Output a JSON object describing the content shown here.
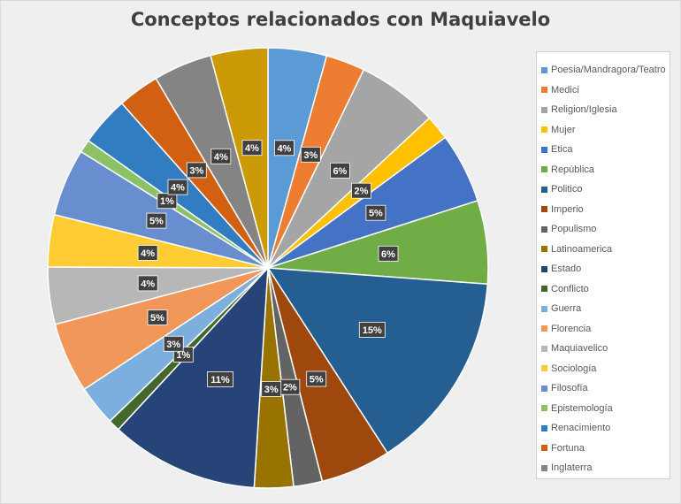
{
  "chart_data": {
    "type": "pie",
    "title": "Conceptos relacionados con Maquiavelo",
    "legend_position": "right",
    "data_label_format": "percent",
    "slices": [
      {
        "name": "Poesia/Mandragora/Teatro",
        "value": 4.5,
        "label": "4%",
        "color": "#5b9bd5"
      },
      {
        "name": "Medici",
        "value": 3.0,
        "label": "3%",
        "color": "#ed7d31"
      },
      {
        "name": "Religion/Iglesia",
        "value": 6.2,
        "label": "6%",
        "color": "#a5a5a5"
      },
      {
        "name": "Mujer",
        "value": 1.9,
        "label": "2%",
        "color": "#ffc000"
      },
      {
        "name": "Etica",
        "value": 5.4,
        "label": "5%",
        "color": "#4472c4"
      },
      {
        "name": "República",
        "value": 6.4,
        "label": "6%",
        "color": "#70ad47"
      },
      {
        "name": "Politico",
        "value": 15.4,
        "label": "15%",
        "color": "#255e91"
      },
      {
        "name": "Imperio",
        "value": 5.4,
        "label": "5%",
        "color": "#9e480e"
      },
      {
        "name": "Populismo",
        "value": 2.2,
        "label": "2%",
        "color": "#636363"
      },
      {
        "name": "Latinoamerica",
        "value": 3.0,
        "label": "3%",
        "color": "#997300"
      },
      {
        "name": "Estado",
        "value": 11.4,
        "label": "11%",
        "color": "#264478"
      },
      {
        "name": "Conflicto",
        "value": 0.9,
        "label": "1%",
        "color": "#43682b"
      },
      {
        "name": "Guerra",
        "value": 3.1,
        "label": "3%",
        "color": "#7cafdd"
      },
      {
        "name": "Florencia",
        "value": 5.4,
        "label": "5%",
        "color": "#f1975a"
      },
      {
        "name": "Maquiavelico",
        "value": 4.4,
        "label": "4%",
        "color": "#b7b7b7"
      },
      {
        "name": "Sociología",
        "value": 4.0,
        "label": "4%",
        "color": "#ffcd33"
      },
      {
        "name": "Filosofía",
        "value": 5.2,
        "label": "5%",
        "color": "#698ed0"
      },
      {
        "name": "Epistemología",
        "value": 1.0,
        "label": "1%",
        "color": "#8cc168"
      },
      {
        "name": "Renacimiento",
        "value": 3.8,
        "label": "4%",
        "color": "#327dc2"
      },
      {
        "name": "Fortuna",
        "value": 3.2,
        "label": "3%",
        "color": "#d26012"
      },
      {
        "name": "Inglaterra",
        "value": 4.5,
        "label": "4%",
        "color": "#848484"
      },
      {
        "name": "",
        "value": 4.4,
        "label": "4%",
        "color": "#cc9a06"
      }
    ]
  }
}
